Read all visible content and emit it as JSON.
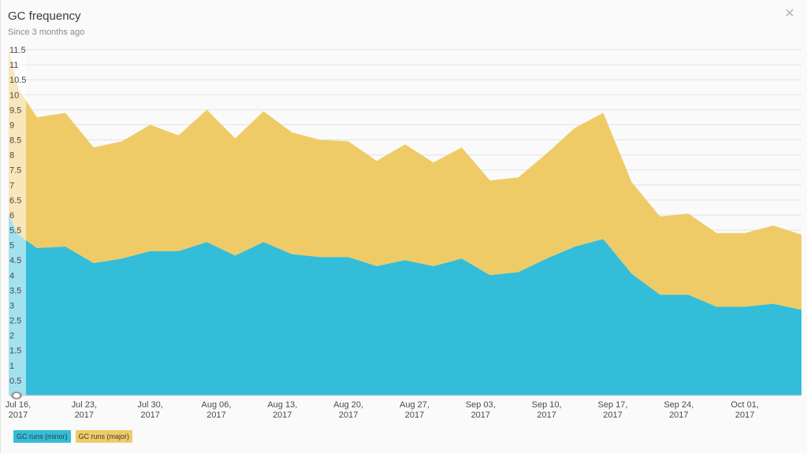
{
  "header": {
    "title": "GC frequency",
    "subtitle": "Since 3 months ago",
    "close_icon": "close-icon"
  },
  "colors": {
    "minor": "#33bdd9",
    "major": "#efcb67",
    "grid": "#e3e3e3"
  },
  "legend": [
    {
      "label": "GC runs (minor)",
      "color": "#33bdd9"
    },
    {
      "label": "GC runs (major)",
      "color": "#efcb67"
    }
  ],
  "chart_data": {
    "type": "area",
    "stacked": true,
    "ylim": [
      0,
      11.5
    ],
    "y_ticks": [
      "0.5",
      "1",
      "1.5",
      "2",
      "2.5",
      "3",
      "3.5",
      "4",
      "4.5",
      "5",
      "5.5",
      "6",
      "6.5",
      "7",
      "7.5",
      "8",
      "8.5",
      "9",
      "9.5",
      "10",
      "10.5",
      "11",
      "11.5"
    ],
    "y_tick_values": [
      0.5,
      1,
      1.5,
      2,
      2.5,
      3,
      3.5,
      4,
      4.5,
      5,
      5.5,
      6,
      6.5,
      7,
      7.5,
      8,
      8.5,
      9,
      9.5,
      10,
      10.5,
      11,
      11.5
    ],
    "x_tick_labels": [
      [
        "Jul 16,",
        "2017"
      ],
      [
        "Jul 23,",
        "2017"
      ],
      [
        "Jul 30,",
        "2017"
      ],
      [
        "Aug 06,",
        "2017"
      ],
      [
        "Aug 13,",
        "2017"
      ],
      [
        "Aug 20,",
        "2017"
      ],
      [
        "Aug 27,",
        "2017"
      ],
      [
        "Sep 03,",
        "2017"
      ],
      [
        "Sep 10,",
        "2017"
      ],
      [
        "Sep 17,",
        "2017"
      ],
      [
        "Sep 24,",
        "2017"
      ],
      [
        "Oct 01,",
        "2017"
      ]
    ],
    "x_tick_dates": [
      "2017-07-16",
      "2017-07-23",
      "2017-07-30",
      "2017-08-06",
      "2017-08-13",
      "2017-08-20",
      "2017-08-27",
      "2017-09-03",
      "2017-09-10",
      "2017-09-17",
      "2017-09-24",
      "2017-10-01"
    ],
    "x": [
      "2017-07-15",
      "2017-07-16",
      "2017-07-18",
      "2017-07-21",
      "2017-07-24",
      "2017-07-27",
      "2017-07-30",
      "2017-08-02",
      "2017-08-05",
      "2017-08-08",
      "2017-08-11",
      "2017-08-14",
      "2017-08-17",
      "2017-08-20",
      "2017-08-23",
      "2017-08-26",
      "2017-08-29",
      "2017-09-01",
      "2017-09-04",
      "2017-09-07",
      "2017-09-10",
      "2017-09-13",
      "2017-09-16",
      "2017-09-19",
      "2017-09-22",
      "2017-09-25",
      "2017-09-28",
      "2017-10-01",
      "2017-10-04",
      "2017-10-07"
    ],
    "series": [
      {
        "name": "GC runs (minor)",
        "values": [
          6.0,
          5.35,
          4.9,
          4.95,
          4.4,
          4.55,
          4.8,
          4.8,
          5.1,
          4.65,
          5.1,
          4.7,
          4.6,
          4.6,
          4.3,
          4.5,
          4.3,
          4.55,
          4.0,
          4.1,
          4.55,
          4.95,
          5.2,
          4.05,
          3.35,
          3.35,
          2.95,
          2.95,
          3.05,
          2.85
        ]
      },
      {
        "name": "GC runs (major)",
        "values": [
          5.5,
          4.85,
          4.35,
          4.45,
          3.85,
          3.9,
          4.2,
          3.85,
          4.4,
          3.9,
          4.35,
          4.05,
          3.9,
          3.85,
          3.5,
          3.85,
          3.45,
          3.7,
          3.15,
          3.15,
          3.5,
          3.95,
          4.2,
          3.05,
          2.6,
          2.7,
          2.45,
          2.45,
          2.6,
          2.5
        ]
      }
    ]
  }
}
